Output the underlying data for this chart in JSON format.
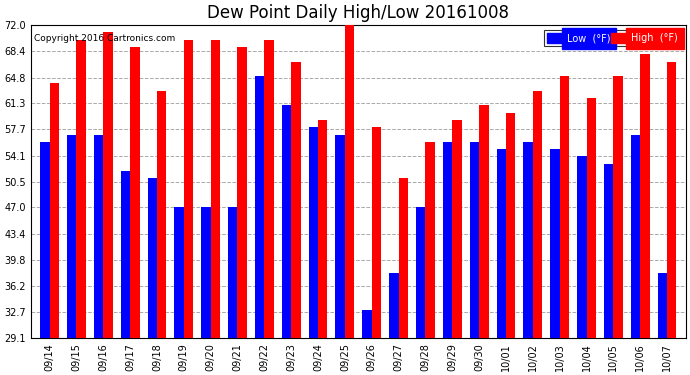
{
  "title": "Dew Point Daily High/Low 20161008",
  "copyright": "Copyright 2016 Cartronics.com",
  "dates": [
    "09/14",
    "09/15",
    "09/16",
    "09/17",
    "09/18",
    "09/19",
    "09/20",
    "09/21",
    "09/22",
    "09/23",
    "09/24",
    "09/25",
    "09/26",
    "09/27",
    "09/28",
    "09/29",
    "09/30",
    "10/01",
    "10/02",
    "10/03",
    "10/04",
    "10/05",
    "10/06",
    "10/07"
  ],
  "low": [
    56,
    57,
    57,
    52,
    51,
    47,
    47,
    47,
    65,
    61,
    58,
    57,
    33,
    38,
    47,
    56,
    56,
    55,
    56,
    55,
    54,
    53,
    57,
    38
  ],
  "high": [
    64,
    70,
    71,
    69,
    63,
    70,
    70,
    69,
    70,
    67,
    59,
    73,
    58,
    51,
    56,
    59,
    61,
    60,
    63,
    65,
    62,
    65,
    68,
    67
  ],
  "low_color": "#0000ff",
  "high_color": "#ff0000",
  "bg_color": "#ffffff",
  "grid_color": "#aaaaaa",
  "ylim_min": 29.1,
  "ylim_max": 72.0,
  "yticks": [
    29.1,
    32.7,
    36.2,
    39.8,
    43.4,
    47.0,
    50.5,
    54.1,
    57.7,
    61.3,
    64.8,
    68.4,
    72.0
  ],
  "legend_low_label": "Low  (°F)",
  "legend_high_label": "High  (°F)",
  "title_fontsize": 12,
  "tick_fontsize": 7,
  "bar_width": 0.35
}
